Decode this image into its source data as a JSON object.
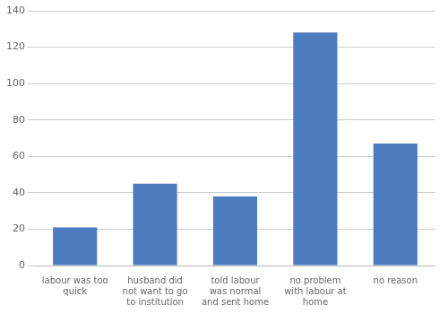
{
  "chart_data": {
    "type": "bar",
    "categories": [
      "labour was too\nquick",
      "husband did\nnot want to go\nto institution",
      "told labour\nwas normal\nand sent home",
      "no problem\nwith labour at\nhome",
      "no reason"
    ],
    "values": [
      21,
      45,
      38,
      128,
      67
    ],
    "color": "#4d7cbe",
    "ylim": [
      0,
      140
    ],
    "yticks": [
      0,
      20,
      40,
      60,
      80,
      100,
      120,
      140
    ],
    "grid": true
  }
}
